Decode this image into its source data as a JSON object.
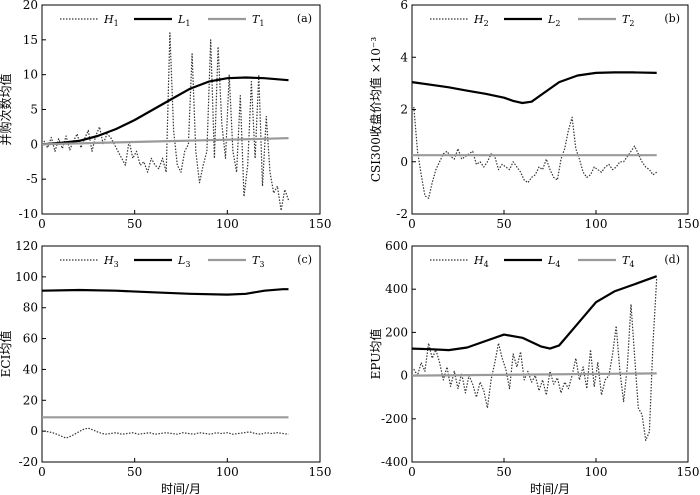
{
  "chart_data": [
    {
      "type": "line",
      "panel_label": "(a)",
      "ylabel": "并购次数均值",
      "xlabel": "",
      "xlim": [
        0,
        150
      ],
      "ylim": [
        -10,
        20
      ],
      "xticks": [
        0,
        50,
        100,
        150
      ],
      "yticks": [
        -10,
        -5,
        0,
        5,
        10,
        15,
        20
      ],
      "legend": [
        {
          "base": "H",
          "sub": "1",
          "style": "dotted"
        },
        {
          "base": "L",
          "sub": "1",
          "style": "bold"
        },
        {
          "base": "T",
          "sub": "1",
          "style": "gray"
        }
      ],
      "series": [
        {
          "style": "dotted",
          "x": [
            1,
            3,
            5,
            7,
            9,
            11,
            13,
            15,
            17,
            19,
            21,
            23,
            25,
            27,
            29,
            31,
            33,
            35,
            37,
            39,
            41,
            43,
            45,
            47,
            49,
            51,
            53,
            55,
            57,
            59,
            61,
            63,
            65,
            67,
            69,
            71,
            73,
            75,
            77,
            79,
            81,
            83,
            85,
            87,
            89,
            91,
            93,
            95,
            97,
            99,
            101,
            103,
            105,
            107,
            109,
            111,
            113,
            115,
            117,
            119,
            121,
            123,
            125,
            127,
            129,
            131,
            133
          ],
          "y": [
            0.5,
            -0.5,
            1,
            -1,
            0.8,
            -0.6,
            1.2,
            -0.8,
            0.5,
            1.5,
            -0.5,
            0.8,
            2,
            -1,
            1.2,
            2.5,
            0,
            1.5,
            1,
            0,
            -1,
            -2,
            -3,
            0.5,
            -2,
            -1,
            -3,
            -2.5,
            -4,
            -2,
            -3,
            -3.5,
            -2,
            -4,
            16,
            2,
            -3,
            -4,
            -1,
            0,
            13,
            -1,
            -5.5,
            -3,
            -1,
            15,
            -2,
            14,
            3,
            -2,
            10,
            -1,
            -4,
            7,
            -7.5,
            -3,
            9,
            -2,
            10,
            -6,
            4,
            -4,
            -7,
            -6,
            -9.5,
            -6.5,
            -8
          ]
        },
        {
          "style": "bold",
          "x": [
            0,
            10,
            20,
            30,
            40,
            50,
            60,
            70,
            80,
            90,
            100,
            110,
            120,
            133
          ],
          "y": [
            0,
            0.2,
            0.5,
            1.2,
            2.2,
            3.5,
            5,
            6.5,
            8,
            9,
            9.5,
            9.6,
            9.5,
            9.2
          ]
        },
        {
          "style": "gray",
          "x": [
            0,
            30,
            60,
            90,
            120,
            133
          ],
          "y": [
            0,
            0.2,
            0.4,
            0.6,
            0.8,
            0.9
          ]
        }
      ]
    },
    {
      "type": "line",
      "panel_label": "(b)",
      "ylabel": "CSI300收盘价均值 ×10⁻³",
      "xlabel": "",
      "xlim": [
        0,
        150
      ],
      "ylim": [
        -2,
        6
      ],
      "xticks": [
        0,
        50,
        100,
        150
      ],
      "yticks": [
        -2,
        0,
        2,
        4,
        6
      ],
      "legend": [
        {
          "base": "H",
          "sub": "2",
          "style": "dotted"
        },
        {
          "base": "L",
          "sub": "2",
          "style": "bold"
        },
        {
          "base": "T",
          "sub": "2",
          "style": "gray"
        }
      ],
      "series": [
        {
          "style": "dotted",
          "x": [
            1,
            3,
            5,
            7,
            9,
            11,
            13,
            15,
            17,
            19,
            21,
            23,
            25,
            27,
            29,
            31,
            33,
            35,
            37,
            39,
            41,
            43,
            45,
            47,
            49,
            51,
            53,
            55,
            57,
            59,
            61,
            63,
            65,
            67,
            69,
            71,
            73,
            75,
            77,
            79,
            81,
            83,
            85,
            87,
            89,
            91,
            93,
            95,
            97,
            99,
            101,
            103,
            105,
            107,
            109,
            111,
            113,
            115,
            117,
            119,
            121,
            123,
            125,
            127,
            129,
            131,
            133
          ],
          "y": [
            2.1,
            0.4,
            -0.5,
            -1.3,
            -1.4,
            -0.8,
            -0.3,
            0,
            0.3,
            0.4,
            0.2,
            0.1,
            0.5,
            0.1,
            0.2,
            0.3,
            0.4,
            -0.1,
            0,
            -0.2,
            0,
            0.3,
            0.2,
            -0.3,
            -0.1,
            -0.2,
            -0.3,
            0,
            -0.2,
            -0.4,
            -0.7,
            -0.8,
            -0.6,
            -0.5,
            -0.2,
            -0.3,
            0.1,
            -0.3,
            -0.6,
            -0.7,
            0.1,
            0.5,
            1.2,
            1.7,
            0.5,
            0.1,
            -0.4,
            -0.6,
            -0.5,
            -0.2,
            -0.3,
            -0.4,
            -0.2,
            -0.1,
            -0.3,
            -0.2,
            0,
            0,
            0.2,
            0.4,
            0.6,
            0.3,
            0,
            -0.2,
            -0.3,
            -0.5,
            -0.4
          ]
        },
        {
          "style": "bold",
          "x": [
            0,
            10,
            20,
            30,
            40,
            50,
            55,
            60,
            65,
            70,
            80,
            90,
            100,
            110,
            120,
            133
          ],
          "y": [
            3.05,
            2.95,
            2.85,
            2.72,
            2.6,
            2.45,
            2.33,
            2.25,
            2.3,
            2.55,
            3.05,
            3.3,
            3.4,
            3.42,
            3.42,
            3.4
          ]
        },
        {
          "style": "gray",
          "x": [
            0,
            133
          ],
          "y": [
            0.25,
            0.25
          ]
        }
      ]
    },
    {
      "type": "line",
      "panel_label": "(c)",
      "ylabel": "ECI均值",
      "xlabel": "时间/月",
      "xlim": [
        0,
        150
      ],
      "ylim": [
        -20,
        120
      ],
      "xticks": [
        0,
        50,
        100,
        150
      ],
      "yticks": [
        -20,
        0,
        20,
        40,
        60,
        80,
        100,
        120
      ],
      "legend": [
        {
          "base": "H",
          "sub": "3",
          "style": "dotted"
        },
        {
          "base": "L",
          "sub": "3",
          "style": "bold"
        },
        {
          "base": "T",
          "sub": "3",
          "style": "gray"
        }
      ],
      "series": [
        {
          "style": "dotted",
          "x": [
            1,
            4,
            7,
            10,
            13,
            16,
            19,
            22,
            25,
            28,
            31,
            34,
            37,
            40,
            43,
            46,
            49,
            52,
            55,
            58,
            61,
            64,
            67,
            70,
            73,
            76,
            79,
            82,
            85,
            88,
            91,
            94,
            97,
            100,
            103,
            106,
            109,
            112,
            115,
            118,
            121,
            124,
            127,
            130,
            133
          ],
          "y": [
            0,
            -0.5,
            -1.5,
            -3,
            -4.5,
            -3,
            -1,
            1,
            2,
            0.5,
            -1,
            -2,
            -1.5,
            -1,
            -2,
            -1.5,
            -1,
            -2,
            -1.5,
            -1,
            -2,
            -1.5,
            -1,
            -1.5,
            -2,
            -1,
            -1.5,
            -2,
            -1,
            -1.5,
            -2,
            -1,
            -1.5,
            -1,
            -2,
            -1.5,
            -1,
            -0.5,
            -1.5,
            -2,
            -1,
            -1.5,
            -1,
            -1.5,
            -2
          ]
        },
        {
          "style": "bold",
          "x": [
            0,
            20,
            40,
            60,
            80,
            100,
            110,
            120,
            130,
            133
          ],
          "y": [
            91,
            91.5,
            91,
            90,
            89,
            88.5,
            89,
            91,
            92,
            92
          ]
        },
        {
          "style": "gray",
          "x": [
            0,
            133
          ],
          "y": [
            9,
            9
          ]
        }
      ]
    },
    {
      "type": "line",
      "panel_label": "(d)",
      "ylabel": "EPU均值",
      "xlabel": "时间/月",
      "xlim": [
        0,
        150
      ],
      "ylim": [
        -400,
        600
      ],
      "xticks": [
        0,
        50,
        100,
        150
      ],
      "yticks": [
        -400,
        -200,
        0,
        200,
        400,
        600
      ],
      "legend": [
        {
          "base": "H",
          "sub": "4",
          "style": "dotted"
        },
        {
          "base": "L",
          "sub": "4",
          "style": "bold"
        },
        {
          "base": "T",
          "sub": "4",
          "style": "gray"
        }
      ],
      "series": [
        {
          "style": "dotted",
          "x": [
            1,
            3,
            5,
            7,
            9,
            11,
            13,
            15,
            17,
            19,
            21,
            23,
            25,
            27,
            29,
            31,
            33,
            35,
            37,
            39,
            41,
            43,
            45,
            47,
            49,
            51,
            53,
            55,
            57,
            59,
            61,
            63,
            65,
            67,
            69,
            71,
            73,
            75,
            77,
            79,
            81,
            83,
            85,
            87,
            89,
            91,
            93,
            95,
            97,
            99,
            101,
            103,
            105,
            107,
            109,
            111,
            113,
            115,
            117,
            119,
            121,
            123,
            125,
            127,
            129,
            131,
            133
          ],
          "y": [
            30,
            0,
            60,
            20,
            150,
            80,
            120,
            60,
            -20,
            40,
            -50,
            20,
            -60,
            10,
            -80,
            0,
            -40,
            -100,
            -30,
            -70,
            -150,
            -20,
            60,
            150,
            80,
            30,
            -60,
            100,
            40,
            110,
            -20,
            20,
            -30,
            0,
            -70,
            -20,
            -90,
            20,
            -40,
            -10,
            -80,
            -30,
            -60,
            0,
            80,
            -20,
            40,
            -60,
            120,
            -50,
            60,
            -90,
            -20,
            0,
            100,
            230,
            20,
            -120,
            40,
            330,
            90,
            -150,
            -180,
            -300,
            -260,
            150,
            450
          ]
        },
        {
          "style": "bold",
          "x": [
            0,
            10,
            20,
            30,
            40,
            50,
            60,
            70,
            75,
            80,
            90,
            100,
            110,
            120,
            133
          ],
          "y": [
            125,
            122,
            118,
            130,
            160,
            190,
            175,
            135,
            125,
            140,
            240,
            340,
            390,
            420,
            460
          ]
        },
        {
          "style": "gray",
          "x": [
            0,
            133
          ],
          "y": [
            0,
            10
          ]
        }
      ]
    }
  ]
}
